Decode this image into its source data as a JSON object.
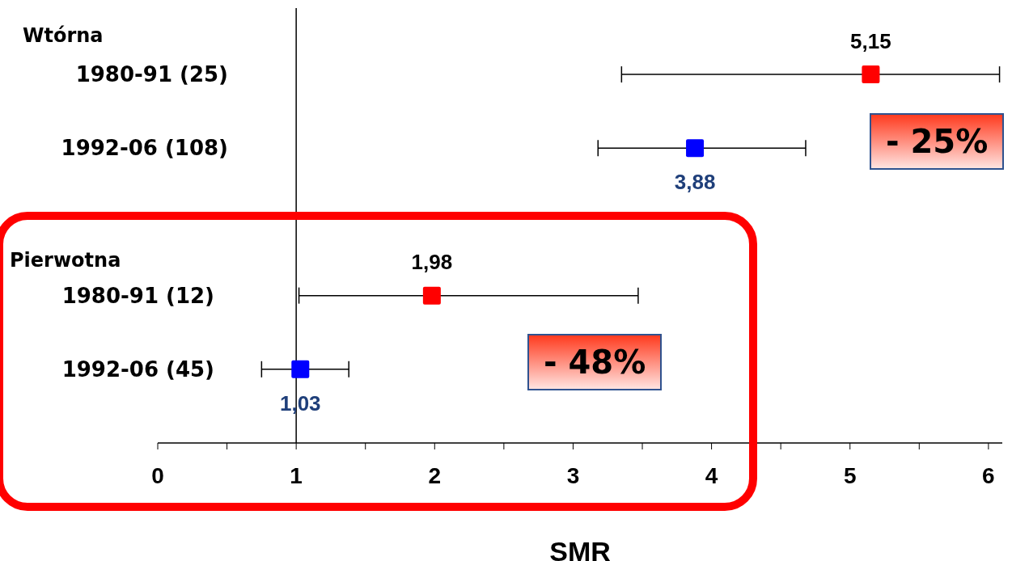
{
  "chart_data": {
    "type": "scatter",
    "orientation": "horizontal",
    "xlabel": "SMR",
    "categories": [
      "1980-91 (25)",
      "1992-06 (108)",
      null,
      "1980-91 (12)",
      "1992-06 (45)"
    ],
    "series": [
      {
        "color": "#ff0000",
        "values": [
          5.15,
          null,
          null,
          1.98,
          null
        ],
        "errors": [
          [
            3.35,
            6.08
          ],
          null,
          null,
          [
            1.02,
            3.47
          ],
          null
        ],
        "value_labels": [
          "5,15",
          null,
          null,
          "1,98",
          null
        ]
      },
      {
        "color": "#0000ff",
        "values": [
          null,
          3.88,
          null,
          null,
          1.03
        ],
        "errors": [
          null,
          [
            3.18,
            4.68
          ],
          null,
          null,
          [
            0.75,
            1.38
          ]
        ],
        "value_labels": [
          null,
          "3,88",
          null,
          null,
          "1,03"
        ]
      }
    ],
    "xlim": [
      0,
      6.1
    ],
    "xticks": [
      0,
      {
        "value": 0.5,
        "label": null
      },
      1,
      {
        "value": 1.5,
        "label": null
      },
      2,
      {
        "value": 2.5,
        "label": null
      },
      3,
      {
        "value": 3.5,
        "label": null
      },
      4,
      {
        "value": 4.5,
        "label": null
      },
      5,
      {
        "value": 5.5,
        "label": null
      },
      6
    ],
    "ref_lines": [
      {
        "axis": "x",
        "value": 1,
        "color": "#000000"
      }
    ],
    "annotations": [
      "Wtórna",
      "Pierwotna",
      "- 25%",
      "- 48%"
    ],
    "marker": "square",
    "grid": false,
    "legend": false
  }
}
